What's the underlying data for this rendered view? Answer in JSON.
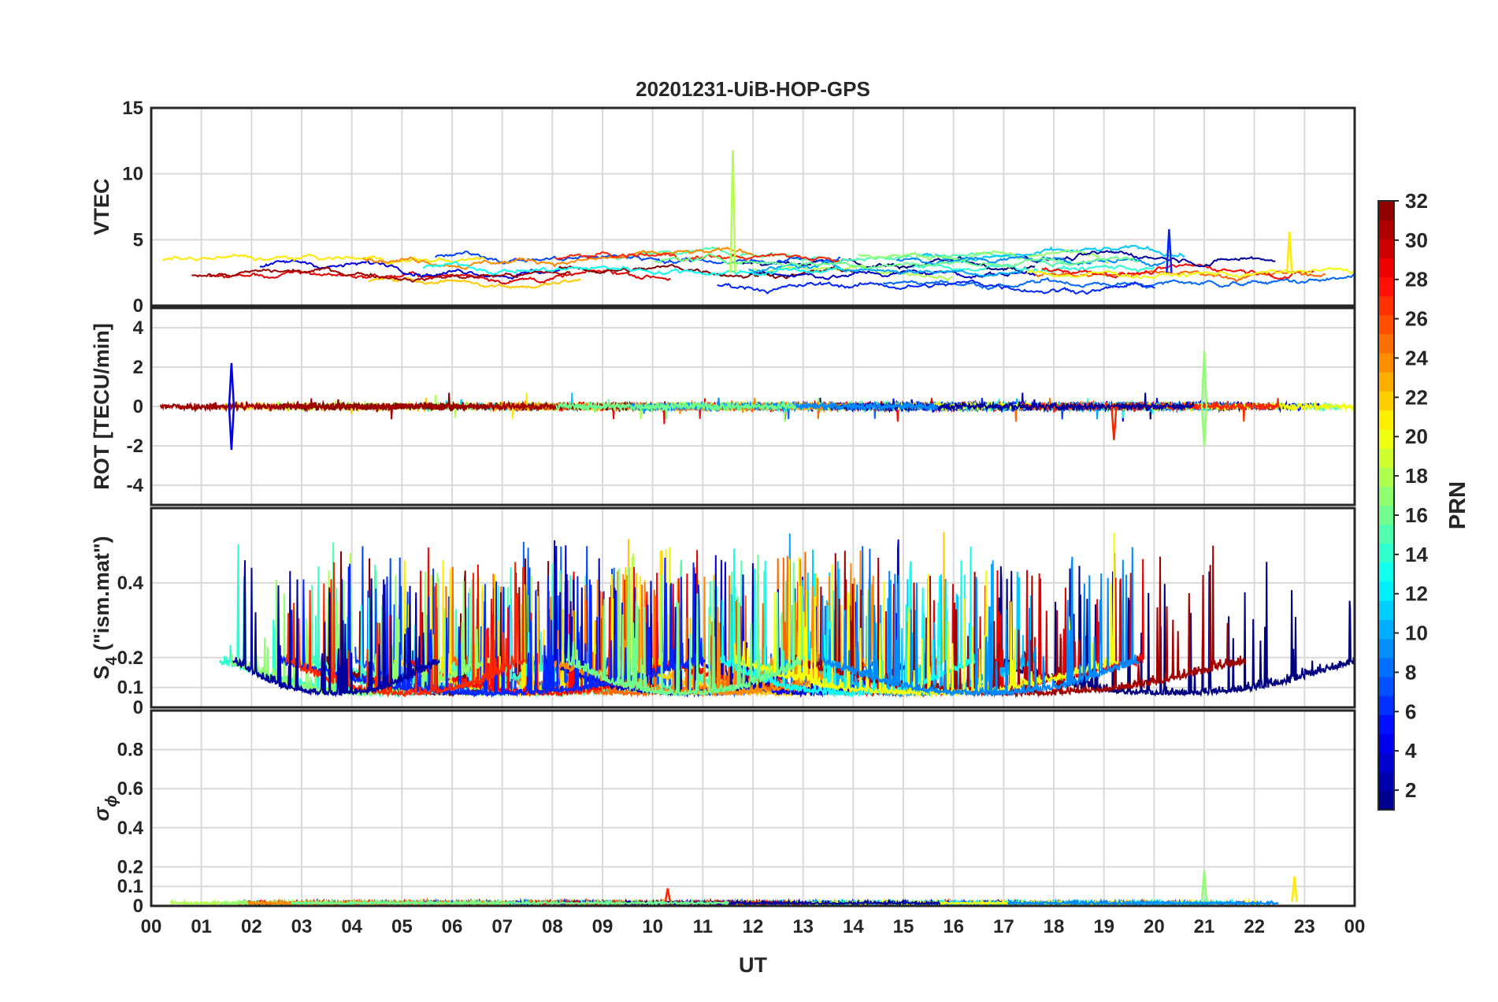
{
  "chart_data": {
    "type": "line",
    "title": "20201231-UiB-HOP-GPS",
    "xlabel": "UT",
    "x_tick_labels": [
      "00",
      "01",
      "02",
      "03",
      "04",
      "05",
      "06",
      "07",
      "08",
      "09",
      "10",
      "11",
      "12",
      "13",
      "14",
      "15",
      "16",
      "17",
      "18",
      "19",
      "20",
      "21",
      "22",
      "23",
      "00"
    ],
    "xlim_hours": [
      0,
      24
    ],
    "grid": true,
    "colorbar": {
      "label": "PRN",
      "range": [
        1,
        32
      ],
      "ticks": [
        2,
        4,
        6,
        8,
        10,
        12,
        14,
        16,
        18,
        20,
        22,
        24,
        26,
        28,
        30,
        32
      ],
      "tick_labels": [
        "2",
        "4",
        "6",
        "8",
        "10",
        "12",
        "14",
        "16",
        "18",
        "20",
        "22",
        "24",
        "26",
        "28",
        "30",
        "32"
      ],
      "colormap": "jet",
      "placement": "right"
    },
    "panels": [
      {
        "key": "vtec",
        "ylabel": "VTEC",
        "ylim": [
          0,
          15
        ],
        "yticks": [
          0,
          5,
          10,
          15
        ],
        "ytick_labels": [
          "0",
          "5",
          "10",
          "15"
        ],
        "typical_range": [
          0.5,
          5
        ],
        "annotations": [
          {
            "note": "spike",
            "x_hour": 11.6,
            "y": 11.8,
            "prn": 18
          },
          {
            "note": "peak",
            "x_hour": 20.3,
            "y": 5.8,
            "prn": 6
          },
          {
            "note": "peak",
            "x_hour": 22.7,
            "y": 5.6,
            "prn": 21
          }
        ]
      },
      {
        "key": "rot",
        "ylabel": "ROT [TECU/min]",
        "ylim": [
          -5,
          5
        ],
        "yticks": [
          -4,
          -2,
          0,
          2,
          4
        ],
        "ytick_labels": [
          "-4",
          "-2",
          "0",
          "2",
          "4"
        ],
        "typical_range": [
          -0.5,
          0.5
        ],
        "annotations": [
          {
            "note": "spike",
            "x_hour": 1.6,
            "y": 2.2,
            "prn": 4
          },
          {
            "note": "spike",
            "x_hour": 1.6,
            "y": -2.2,
            "prn": 4
          },
          {
            "note": "spike",
            "x_hour": 21.0,
            "y": 2.8,
            "prn": 17
          },
          {
            "note": "spike",
            "x_hour": 21.0,
            "y": -2.0,
            "prn": 17
          },
          {
            "note": "spike",
            "x_hour": 19.2,
            "y": -1.7,
            "prn": 27
          }
        ]
      },
      {
        "key": "s4",
        "ylabel_main": "S",
        "ylabel_sub": "4",
        "ylabel_rest": " (\"ism.mat\")",
        "ylim": [
          0,
          0.6
        ],
        "yticks": [
          0,
          0.1,
          0.2,
          0.4
        ],
        "ytick_labels": [
          "0",
          "0.1",
          "0.2",
          "0.4"
        ],
        "typical_range": [
          0.05,
          0.3
        ],
        "annotations": []
      },
      {
        "key": "sigma_phi",
        "ylabel_main": "σ",
        "ylabel_sub": "ϕ",
        "ylim": [
          0,
          1
        ],
        "yticks": [
          0,
          0.1,
          0.2,
          0.4,
          0.6,
          0.8
        ],
        "ytick_labels": [
          "0",
          "0.1",
          "0.2",
          "0.4",
          "0.6",
          "0.8"
        ],
        "typical_range": [
          0.0,
          0.05
        ],
        "annotations": [
          {
            "note": "peak",
            "x_hour": 21.0,
            "y": 0.18,
            "prn": 17
          },
          {
            "note": "peak",
            "x_hour": 22.8,
            "y": 0.15,
            "prn": 21
          },
          {
            "note": "peak",
            "x_hour": 10.3,
            "y": 0.09,
            "prn": 27
          }
        ]
      }
    ]
  }
}
